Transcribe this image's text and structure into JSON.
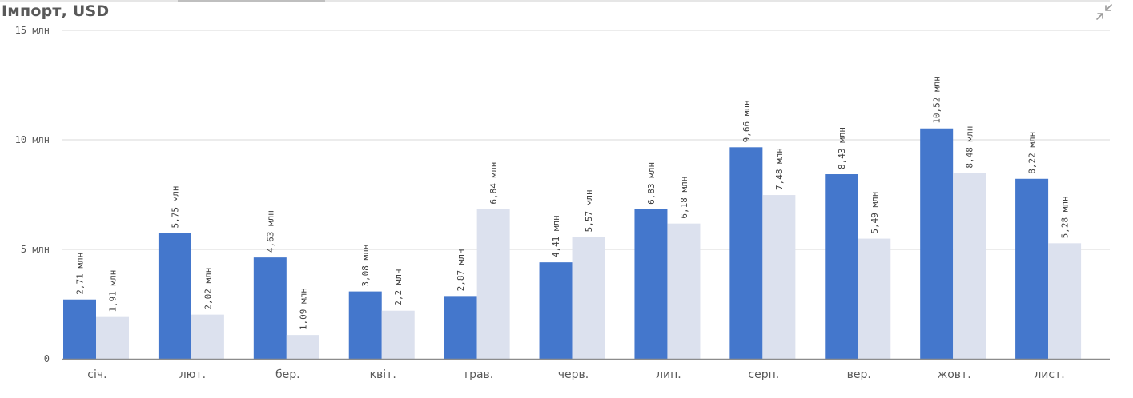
{
  "title": "Імпорт, USD",
  "icons": {
    "expand": "collapse-arrows-icon"
  },
  "chart_data": {
    "type": "bar",
    "title": "Імпорт, USD",
    "categories": [
      "січ.",
      "лют.",
      "бер.",
      "квіт.",
      "трав.",
      "черв.",
      "лип.",
      "серп.",
      "вер.",
      "жовт.",
      "лист."
    ],
    "series": [
      {
        "color": "#4477cc",
        "values": [
          2.71,
          5.75,
          4.63,
          3.08,
          2.87,
          4.41,
          6.83,
          9.66,
          8.43,
          10.52,
          8.22
        ],
        "labels": [
          "2,71 млн",
          "5,75 млн",
          "4,63 млн",
          "3,08 млн",
          "2,87 млн",
          "4,41 млн",
          "6,83 млн",
          "9,66 млн",
          "8,43 млн",
          "10,52 млн",
          "8,22 млн"
        ]
      },
      {
        "color": "#dce1ee",
        "values": [
          1.91,
          2.02,
          1.09,
          2.2,
          6.84,
          5.57,
          6.18,
          7.48,
          5.49,
          8.48,
          5.28
        ],
        "labels": [
          "1,91 млн",
          "2,02 млн",
          "1,09 млн",
          "2,2 млн",
          "6,84 млн",
          "5,57 млн",
          "6,18 млн",
          "7,48 млн",
          "5,49 млн",
          "8,48 млн",
          "5,28 млн"
        ]
      }
    ],
    "yticks": [
      0,
      5,
      10,
      15
    ],
    "ytick_labels": [
      "0",
      "5 млн",
      "10 млн",
      "15 млн"
    ],
    "ylim": [
      0,
      15
    ],
    "grid": true,
    "legend": "none"
  }
}
